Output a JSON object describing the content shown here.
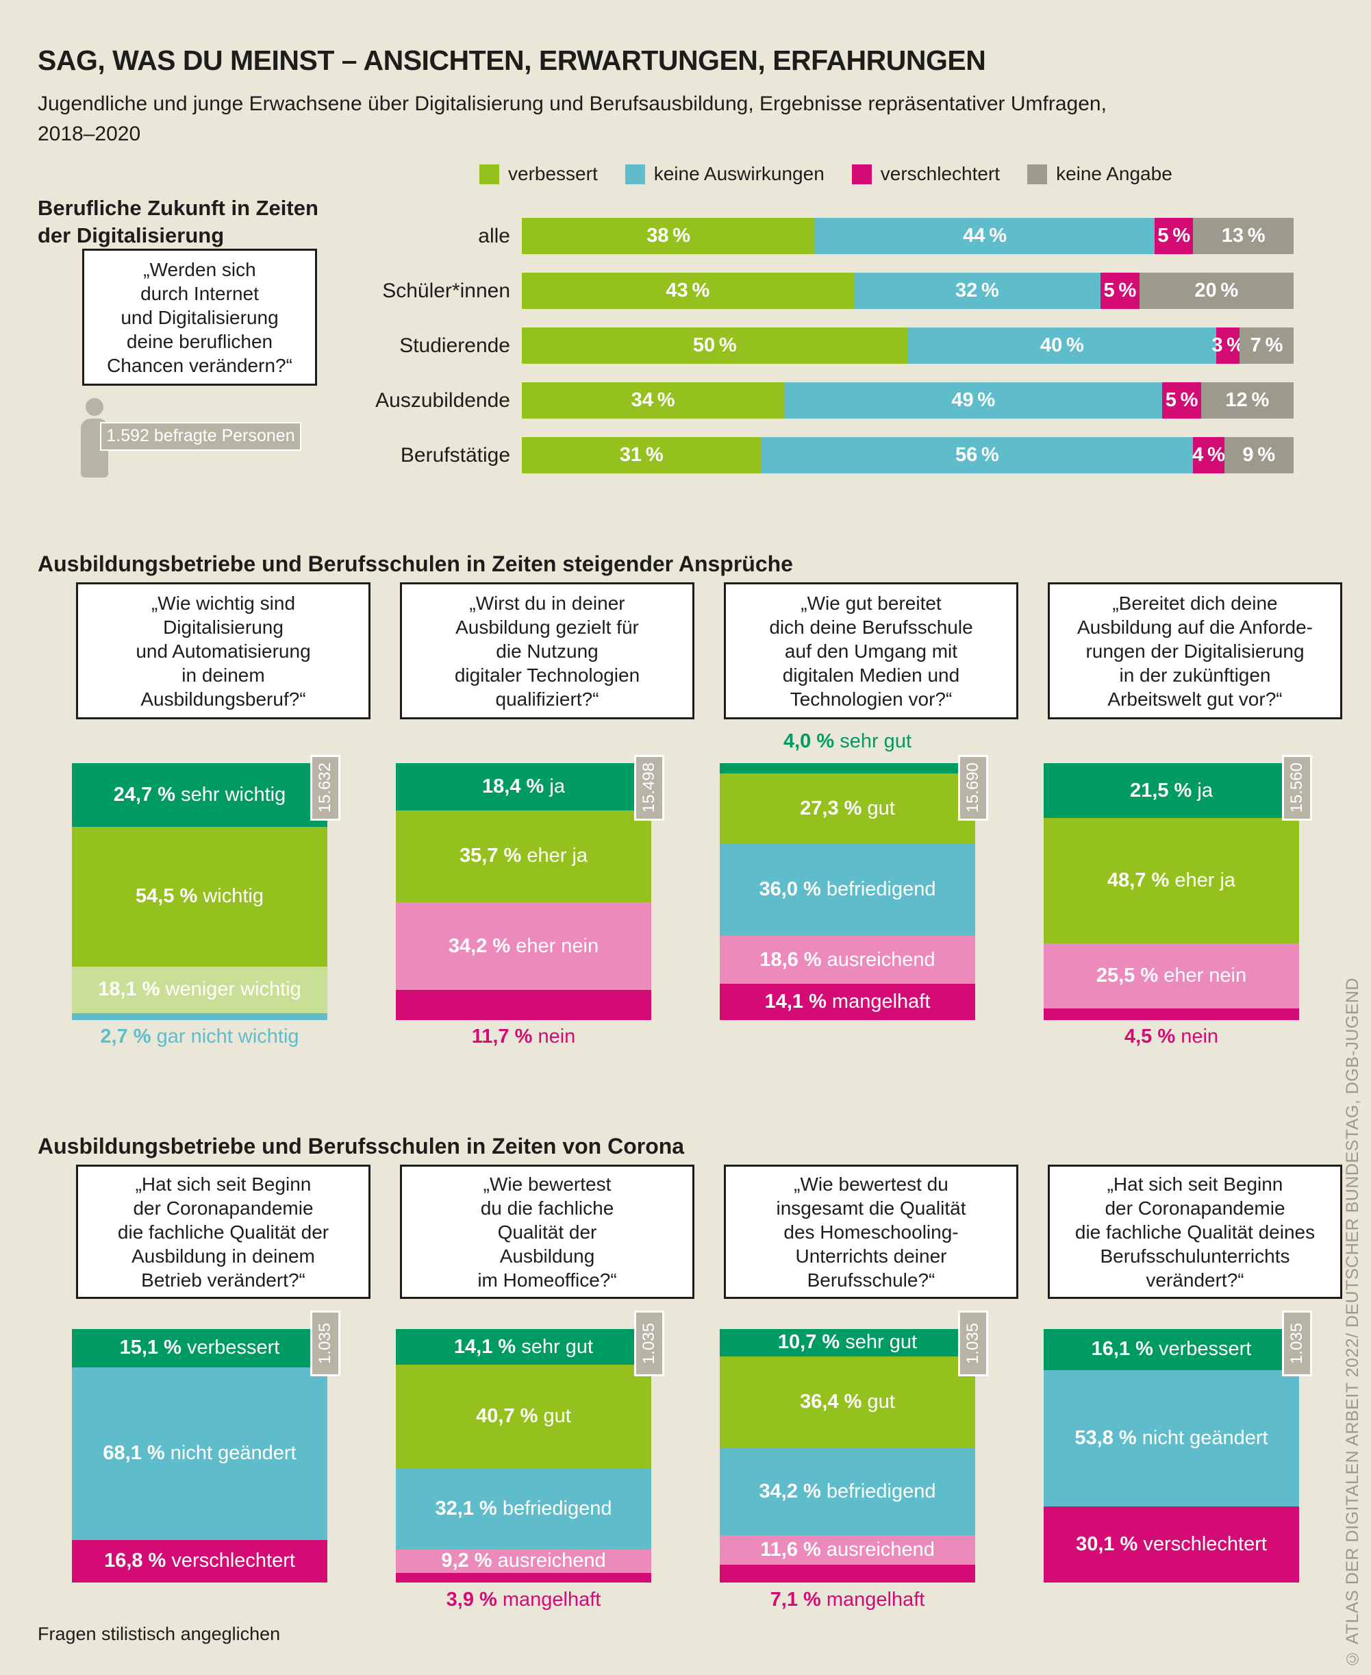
{
  "title": "SAG, WAS DU MEINST – ANSICHTEN, ERWARTUNGEN, ERFAHRUNGEN",
  "subtitle": "Jugendliche und junge Erwachsene über Digitalisierung und Berufsausbildung, Ergebnisse repräsentativer Umfragen,\n2018–2020",
  "footnote": "Fragen stilistisch angeglichen",
  "credit": "© ATLAS DER DIGITALEN ARBEIT 2022/ DEUTSCHER BUNDESTAG, DGB-JUGEND",
  "icons": {
    "sample_person": "person-icon"
  },
  "colors": {
    "background": "#eae7d9",
    "dark_green": "#009a63",
    "green": "#95c11f",
    "light_green": "#cadf96",
    "teal": "#5fbdcb",
    "pink": "#ec8abb",
    "magenta": "#d40a75",
    "gray": "#9d9a8d",
    "box_gray": "#b7b4a5",
    "text": "#1d1d1b"
  },
  "chart_data": [
    {
      "id": "berufliche-zukunft",
      "type": "bar",
      "orientation": "horizontal",
      "stacked": true,
      "title": "Berufliche Zukunft in Zeiten\nder Digitalisierung",
      "question": "„Werden sich\ndurch Internet\nund Digitalisierung\ndeine beruflichen\nChancen verändern?“",
      "sample_label": "1.592 befragte Personen",
      "legend_position": "top",
      "xlim": [
        0,
        100
      ],
      "unit": "%",
      "categories": [
        "alle",
        "Schüler*innen",
        "Studierende",
        "Auszubildende",
        "Berufstätige"
      ],
      "series": [
        {
          "name": "verbessert",
          "color": "#95c11f",
          "values": [
            38,
            43,
            50,
            34,
            31
          ]
        },
        {
          "name": "keine Auswirkungen",
          "color": "#5fbdcb",
          "values": [
            44,
            32,
            40,
            49,
            56
          ]
        },
        {
          "name": "verschlechtert",
          "color": "#d40a75",
          "values": [
            5,
            5,
            3,
            5,
            4
          ]
        },
        {
          "name": "keine Angabe",
          "color": "#9d9a8d",
          "values": [
            13,
            20,
            7,
            12,
            9
          ]
        }
      ]
    },
    {
      "id": "steigende-ansprueche",
      "type": "bar",
      "orientation": "vertical",
      "stacked": true,
      "section_title": "Ausbildungsbetriebe und Berufsschulen in Zeiten steigender Ansprüche",
      "unit": "%",
      "charts": [
        {
          "question": "„Wie wichtig sind\nDigitalisierung\nund Automatisierung\nin deinem\nAusbildungsberuf?“",
          "n": "15.632",
          "segments": [
            {
              "value": 24.7,
              "value_label": "24,7 %",
              "label": "sehr wichtig",
              "color": "#009a63",
              "placement": "inside"
            },
            {
              "value": 54.5,
              "value_label": "54,5 %",
              "label": "wichtig",
              "color": "#95c11f",
              "placement": "inside"
            },
            {
              "value": 18.1,
              "value_label": "18,1 %",
              "label": "weniger wichtig",
              "color": "#cadf96",
              "placement": "inside"
            },
            {
              "value": 2.7,
              "value_label": "2,7 %",
              "label": "gar nicht wichtig",
              "color": "#5fbdcb",
              "placement": "below"
            }
          ]
        },
        {
          "question": "„Wirst du in deiner\nAusbildung gezielt für\ndie Nutzung\ndigitaler Technologien\nqualifiziert?“",
          "n": "15.498",
          "segments": [
            {
              "value": 18.4,
              "value_label": "18,4 %",
              "label": "ja",
              "color": "#009a63",
              "placement": "inside"
            },
            {
              "value": 35.7,
              "value_label": "35,7 %",
              "label": "eher ja",
              "color": "#95c11f",
              "placement": "inside"
            },
            {
              "value": 34.2,
              "value_label": "34,2 %",
              "label": "eher nein",
              "color": "#ec8abb",
              "placement": "inside"
            },
            {
              "value": 11.7,
              "value_label": "11,7 %",
              "label": "nein",
              "color": "#d40a75",
              "placement": "below"
            }
          ]
        },
        {
          "question": "„Wie gut bereitet\ndich deine Berufsschule\nauf den Umgang mit\ndigitalen Medien und\nTechnologien vor?“",
          "n": "15.690",
          "segments": [
            {
              "value": 4.0,
              "value_label": "4,0 %",
              "label": "sehr gut",
              "color": "#009a63",
              "placement": "above"
            },
            {
              "value": 27.3,
              "value_label": "27,3 %",
              "label": "gut",
              "color": "#95c11f",
              "placement": "inside"
            },
            {
              "value": 36.0,
              "value_label": "36,0 %",
              "label": "befriedigend",
              "color": "#5fbdcb",
              "placement": "inside"
            },
            {
              "value": 18.6,
              "value_label": "18,6 %",
              "label": "ausreichend",
              "color": "#ec8abb",
              "placement": "inside"
            },
            {
              "value": 14.1,
              "value_label": "14,1 %",
              "label": "mangelhaft",
              "color": "#d40a75",
              "placement": "inside"
            }
          ]
        },
        {
          "question": "„Bereitet dich deine\nAusbildung auf die Anforde-\nrungen der Digitalisierung\nin der zukünftigen\nArbeitswelt gut vor?“",
          "n": "15.560",
          "segments": [
            {
              "value": 21.5,
              "value_label": "21,5 %",
              "label": "ja",
              "color": "#009a63",
              "placement": "inside"
            },
            {
              "value": 48.7,
              "value_label": "48,7 %",
              "label": "eher ja",
              "color": "#95c11f",
              "placement": "inside"
            },
            {
              "value": 25.5,
              "value_label": "25,5 %",
              "label": "eher nein",
              "color": "#ec8abb",
              "placement": "inside"
            },
            {
              "value": 4.5,
              "value_label": "4,5 %",
              "label": "nein",
              "color": "#d40a75",
              "placement": "below"
            }
          ]
        }
      ]
    },
    {
      "id": "corona",
      "type": "bar",
      "orientation": "vertical",
      "stacked": true,
      "section_title": "Ausbildungsbetriebe und Berufsschulen in Zeiten von Corona",
      "unit": "%",
      "charts": [
        {
          "question": "„Hat sich seit Beginn\nder Coronapandemie\ndie fachliche Qualität der\nAusbildung in deinem\nBetrieb verändert?“",
          "n": "1.035",
          "segments": [
            {
              "value": 15.1,
              "value_label": "15,1 %",
              "label": "verbessert",
              "color": "#009a63",
              "placement": "inside"
            },
            {
              "value": 68.1,
              "value_label": "68,1 %",
              "label": "nicht geändert",
              "color": "#5fbdcb",
              "placement": "inside"
            },
            {
              "value": 16.8,
              "value_label": "16,8 %",
              "label": "verschlechtert",
              "color": "#d40a75",
              "placement": "inside"
            }
          ]
        },
        {
          "question": "„Wie bewertest\ndu die fachliche\nQualität der\nAusbildung\nim Homeoffice?“",
          "n": "1.035",
          "segments": [
            {
              "value": 14.1,
              "value_label": "14,1 %",
              "label": "sehr gut",
              "color": "#009a63",
              "placement": "inside"
            },
            {
              "value": 40.7,
              "value_label": "40,7 %",
              "label": "gut",
              "color": "#95c11f",
              "placement": "inside"
            },
            {
              "value": 32.1,
              "value_label": "32,1 %",
              "label": "befriedigend",
              "color": "#5fbdcb",
              "placement": "inside"
            },
            {
              "value": 9.2,
              "value_label": "9,2 %",
              "label": "ausreichend",
              "color": "#ec8abb",
              "placement": "inside"
            },
            {
              "value": 3.9,
              "value_label": "3,9 %",
              "label": "mangelhaft",
              "color": "#d40a75",
              "placement": "below"
            }
          ]
        },
        {
          "question": "„Wie bewertest du\ninsgesamt die Qualität\ndes Homeschooling-\nUnterrichts deiner\nBerufsschule?“",
          "n": "1.035",
          "segments": [
            {
              "value": 10.7,
              "value_label": "10,7 %",
              "label": "sehr gut",
              "color": "#009a63",
              "placement": "inside"
            },
            {
              "value": 36.4,
              "value_label": "36,4 %",
              "label": "gut",
              "color": "#95c11f",
              "placement": "inside"
            },
            {
              "value": 34.2,
              "value_label": "34,2 %",
              "label": "befriedigend",
              "color": "#5fbdcb",
              "placement": "inside"
            },
            {
              "value": 11.6,
              "value_label": "11,6 %",
              "label": "ausreichend",
              "color": "#ec8abb",
              "placement": "inside"
            },
            {
              "value": 7.1,
              "value_label": "7,1 %",
              "label": "mangelhaft",
              "color": "#d40a75",
              "placement": "below"
            }
          ]
        },
        {
          "question": "„Hat sich seit Beginn\nder Coronapandemie\ndie fachliche Qualität deines\nBerufsschulunterrichts\nverändert?“",
          "n": "1.035",
          "segments": [
            {
              "value": 16.1,
              "value_label": "16,1 %",
              "label": "verbessert",
              "color": "#009a63",
              "placement": "inside"
            },
            {
              "value": 53.8,
              "value_label": "53,8 %",
              "label": "nicht geändert",
              "color": "#5fbdcb",
              "placement": "inside"
            },
            {
              "value": 30.1,
              "value_label": "30,1 %",
              "label": "verschlechtert",
              "color": "#d40a75",
              "placement": "inside"
            }
          ]
        }
      ]
    }
  ]
}
